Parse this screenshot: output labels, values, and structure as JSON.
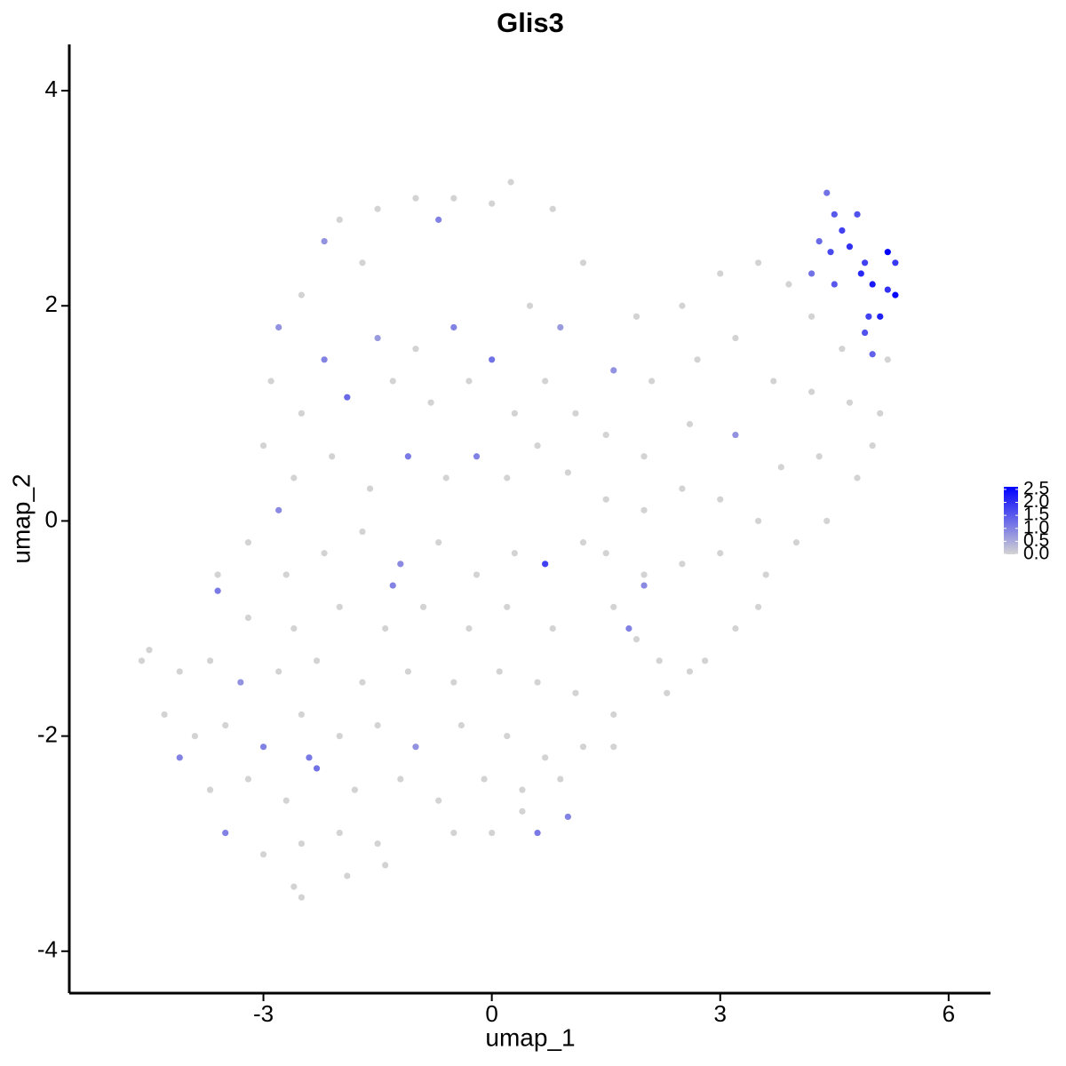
{
  "chart_data": {
    "type": "scatter",
    "title": "Glis3",
    "xlabel": "umap_1",
    "ylabel": "umap_2",
    "xlim": [
      -5.55,
      6.55
    ],
    "ylim": [
      -4.39,
      4.43
    ],
    "xticks": [
      -3,
      0,
      3,
      6
    ],
    "yticks": [
      -4,
      -2,
      0,
      2,
      4
    ],
    "colors": [
      "#d3d3d3",
      "#0000ff"
    ],
    "colorlim": [
      0,
      2.6
    ],
    "legend": "right",
    "colorticks": [
      {
        "value": 0,
        "label": "0.0"
      },
      0.5,
      {
        "value": 1,
        "label": "1.0"
      },
      1.5,
      {
        "value": 2,
        "label": "2.0"
      },
      2.5
    ],
    "x": [
      -2.0,
      -1.5,
      -1.0,
      -0.5,
      0.0,
      0.25,
      0.8,
      -2.2,
      -1.7,
      -0.7,
      -2.5,
      -2.8,
      -2.2,
      -1.5,
      -1.0,
      -0.5,
      0.0,
      0.5,
      0.9,
      1.2,
      -2.9,
      -2.5,
      -1.9,
      -1.3,
      -0.8,
      -0.3,
      0.3,
      0.7,
      1.1,
      -3.0,
      -2.6,
      -2.1,
      -1.6,
      -1.1,
      -0.6,
      -0.2,
      0.2,
      0.6,
      1.0,
      -2.8,
      -3.2,
      -2.7,
      -2.2,
      -1.7,
      -1.2,
      -0.7,
      -0.2,
      0.3,
      0.7,
      1.2,
      -3.6,
      -3.6,
      -3.2,
      -2.6,
      -2.0,
      -1.4,
      -0.9,
      -0.3,
      0.2,
      0.8,
      -4.6,
      -4.5,
      -4.1,
      -3.7,
      -3.3,
      -2.8,
      -2.3,
      -1.7,
      -1.1,
      -0.5,
      0.1,
      0.6,
      1.1,
      -4.3,
      -3.9,
      -3.5,
      -3.0,
      -2.5,
      -2.0,
      -1.5,
      -1.0,
      -0.4,
      0.2,
      0.7,
      1.2,
      -4.1,
      -3.7,
      -3.2,
      -2.7,
      -2.3,
      -1.8,
      -1.2,
      -0.7,
      -0.1,
      0.4,
      0.9,
      -3.5,
      -3.0,
      -2.5,
      -2.0,
      -1.5,
      -1.4,
      -0.5,
      0.0,
      0.4,
      0.6,
      1.0,
      -2.6,
      -2.5,
      -1.9,
      1.6,
      1.9,
      2.2,
      2.6,
      2.8,
      3.2,
      3.5,
      1.6,
      1.6,
      2.3,
      1.5,
      2.0,
      2.5,
      3.0,
      3.6,
      1.5,
      2.0,
      2.5,
      3.0,
      3.5,
      4.0,
      4.4,
      1.5,
      2.0,
      2.6,
      3.2,
      3.8,
      4.3,
      4.8,
      5.0,
      1.6,
      2.1,
      2.7,
      3.2,
      3.7,
      4.2,
      4.7,
      5.1,
      1.9,
      2.5,
      3.0,
      3.5,
      3.9,
      4.2,
      4.6,
      5.2,
      -1.3,
      -2.4,
      2.0,
      1.8,
      4.4,
      4.5,
      4.6,
      4.8,
      4.3,
      4.45,
      4.7,
      4.9,
      5.2,
      5.3,
      4.2,
      4.5,
      4.85,
      5.0,
      5.2,
      5.3,
      4.95,
      5.1,
      4.9,
      5.0
    ],
    "y": [
      2.8,
      2.9,
      3.0,
      3.0,
      2.95,
      3.15,
      2.9,
      2.6,
      2.4,
      2.8,
      2.1,
      1.8,
      1.5,
      1.7,
      1.6,
      1.8,
      1.5,
      2.0,
      1.8,
      2.4,
      1.3,
      1.0,
      1.15,
      1.3,
      1.1,
      1.3,
      1.0,
      1.3,
      1.0,
      0.7,
      0.4,
      0.6,
      0.3,
      0.6,
      0.4,
      0.6,
      0.4,
      0.7,
      0.45,
      0.1,
      -0.2,
      -0.5,
      -0.3,
      -0.1,
      -0.4,
      -0.2,
      -0.5,
      -0.3,
      -0.4,
      -0.2,
      -0.5,
      -0.65,
      -0.9,
      -1.0,
      -0.8,
      -1.0,
      -0.8,
      -1.0,
      -0.8,
      -1.0,
      -1.3,
      -1.2,
      -1.4,
      -1.3,
      -1.5,
      -1.4,
      -1.3,
      -1.5,
      -1.4,
      -1.5,
      -1.4,
      -1.5,
      -1.6,
      -1.8,
      -2.0,
      -1.9,
      -2.1,
      -1.8,
      -2.0,
      -1.9,
      -2.1,
      -1.9,
      -2.0,
      -2.2,
      -2.1,
      -2.2,
      -2.5,
      -2.4,
      -2.6,
      -2.3,
      -2.5,
      -2.4,
      -2.6,
      -2.4,
      -2.5,
      -2.4,
      -2.9,
      -3.1,
      -3.0,
      -2.9,
      -3.0,
      -3.2,
      -2.9,
      -2.9,
      -2.7,
      -2.9,
      -2.75,
      -3.4,
      -3.5,
      -3.3,
      -0.8,
      -1.1,
      -1.3,
      -1.4,
      -1.3,
      -1.0,
      -0.8,
      -1.8,
      -2.1,
      -1.6,
      -0.3,
      -0.5,
      -0.4,
      -0.3,
      -0.5,
      0.2,
      0.1,
      0.3,
      0.2,
      0.0,
      -0.2,
      0.0,
      0.8,
      0.6,
      0.9,
      0.8,
      0.5,
      0.6,
      0.4,
      0.7,
      1.4,
      1.3,
      1.5,
      1.7,
      1.3,
      1.2,
      1.1,
      1.0,
      1.9,
      2.0,
      2.3,
      2.4,
      2.2,
      1.9,
      1.6,
      1.5,
      -0.6,
      -2.2,
      -0.6,
      -1.0,
      3.05,
      2.85,
      2.7,
      2.85,
      2.6,
      2.5,
      2.55,
      2.4,
      2.5,
      2.4,
      2.3,
      2.2,
      2.3,
      2.2,
      2.15,
      2.1,
      1.9,
      1.9,
      1.75,
      1.55
    ],
    "values": [
      0,
      0,
      0,
      0,
      0,
      0,
      0,
      0.8,
      0,
      1.0,
      0,
      0.8,
      1.0,
      0.7,
      0,
      1.0,
      1.2,
      0,
      0.7,
      0,
      0,
      0,
      1.3,
      0,
      0,
      0,
      0,
      0,
      0,
      0,
      0,
      0,
      0,
      1.1,
      0,
      1.0,
      0,
      0,
      0,
      0.9,
      0,
      0,
      0,
      0,
      0.9,
      0,
      0,
      0,
      1.8,
      0,
      0,
      1.1,
      0,
      0,
      0,
      0,
      0,
      0,
      0,
      0,
      0,
      0,
      0,
      0,
      0.8,
      0,
      0,
      0,
      0,
      0,
      0,
      0,
      0,
      0,
      0,
      0,
      1.0,
      0,
      0,
      0,
      0.8,
      0,
      0,
      0,
      0,
      1.0,
      0,
      0,
      0,
      1.2,
      0,
      0,
      0,
      0,
      0,
      0,
      1.0,
      0,
      0,
      0,
      0,
      0,
      0,
      0,
      0,
      1.1,
      1.0,
      0,
      0,
      0,
      0,
      0,
      0,
      0,
      0,
      0,
      0,
      0,
      0,
      0,
      0,
      0,
      0,
      0,
      0,
      0,
      0,
      0,
      0,
      0,
      0,
      0,
      0,
      0,
      0,
      0.8,
      0,
      0,
      0,
      0,
      0.8,
      0,
      0,
      0,
      0,
      0,
      0,
      0,
      0,
      0,
      0,
      0,
      0,
      0,
      0,
      0,
      1.0,
      1.1,
      0.9,
      1.0,
      1.2,
      1.5,
      1.8,
      1.6,
      1.3,
      1.7,
      2.0,
      1.8,
      2.6,
      1.9,
      1.2,
      1.5,
      2.1,
      2.3,
      2.0,
      2.5,
      1.8,
      2.2,
      1.6,
      1.4
    ]
  }
}
